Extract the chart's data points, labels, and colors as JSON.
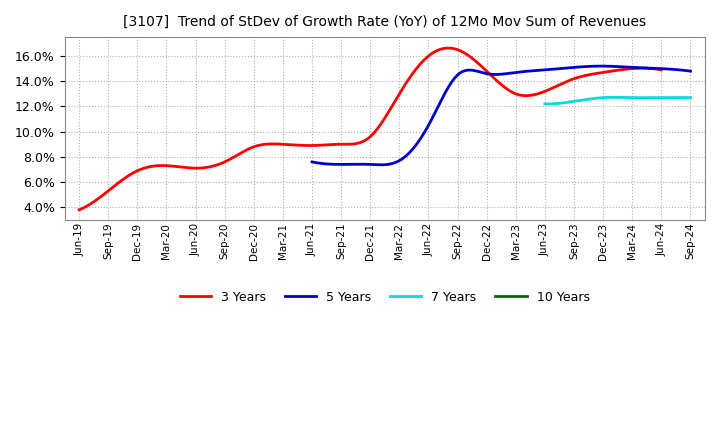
{
  "title": "[3107]  Trend of StDev of Growth Rate (YoY) of 12Mo Mov Sum of Revenues",
  "xlabel": "",
  "ylabel": "",
  "ylim": [
    0.03,
    0.175
  ],
  "yticks": [
    0.04,
    0.06,
    0.08,
    0.1,
    0.12,
    0.14,
    0.16
  ],
  "background_color": "#ffffff",
  "plot_bg_color": "#ffffff",
  "grid_color": "#b0b0b0",
  "x_labels": [
    "Jun-19",
    "Sep-19",
    "Dec-19",
    "Mar-20",
    "Jun-20",
    "Sep-20",
    "Dec-20",
    "Mar-21",
    "Jun-21",
    "Sep-21",
    "Dec-21",
    "Mar-22",
    "Jun-22",
    "Sep-22",
    "Dec-22",
    "Mar-23",
    "Jun-23",
    "Sep-23",
    "Dec-23",
    "Mar-24",
    "Jun-24",
    "Sep-24"
  ],
  "series": {
    "3 Years": {
      "color": "#ff0000",
      "values": [
        0.038,
        0.053,
        0.069,
        0.073,
        0.071,
        0.076,
        0.088,
        0.09,
        0.089,
        0.09,
        0.096,
        0.13,
        0.16,
        0.165,
        0.148,
        0.13,
        0.132,
        0.142,
        0.147,
        0.15,
        0.149,
        null
      ]
    },
    "5 Years": {
      "color": "#0000cc",
      "values": [
        null,
        null,
        null,
        null,
        null,
        null,
        null,
        null,
        0.076,
        0.074,
        0.074,
        0.077,
        0.105,
        0.145,
        0.146,
        0.147,
        0.149,
        0.151,
        0.152,
        0.151,
        0.15,
        0.148
      ]
    },
    "7 Years": {
      "color": "#00dddd",
      "values": [
        null,
        null,
        null,
        null,
        null,
        null,
        null,
        null,
        null,
        null,
        null,
        null,
        null,
        null,
        null,
        null,
        0.122,
        0.124,
        0.127,
        0.127,
        0.127,
        0.127
      ]
    },
    "10 Years": {
      "color": "#006600",
      "values": [
        null,
        null,
        null,
        null,
        null,
        null,
        null,
        null,
        null,
        null,
        null,
        null,
        null,
        null,
        null,
        null,
        null,
        null,
        null,
        null,
        null,
        null
      ]
    }
  },
  "legend_entries": [
    "3 Years",
    "5 Years",
    "7 Years",
    "10 Years"
  ],
  "legend_colors": [
    "#ff0000",
    "#0000cc",
    "#00dddd",
    "#006600"
  ],
  "linewidth": 2.0
}
